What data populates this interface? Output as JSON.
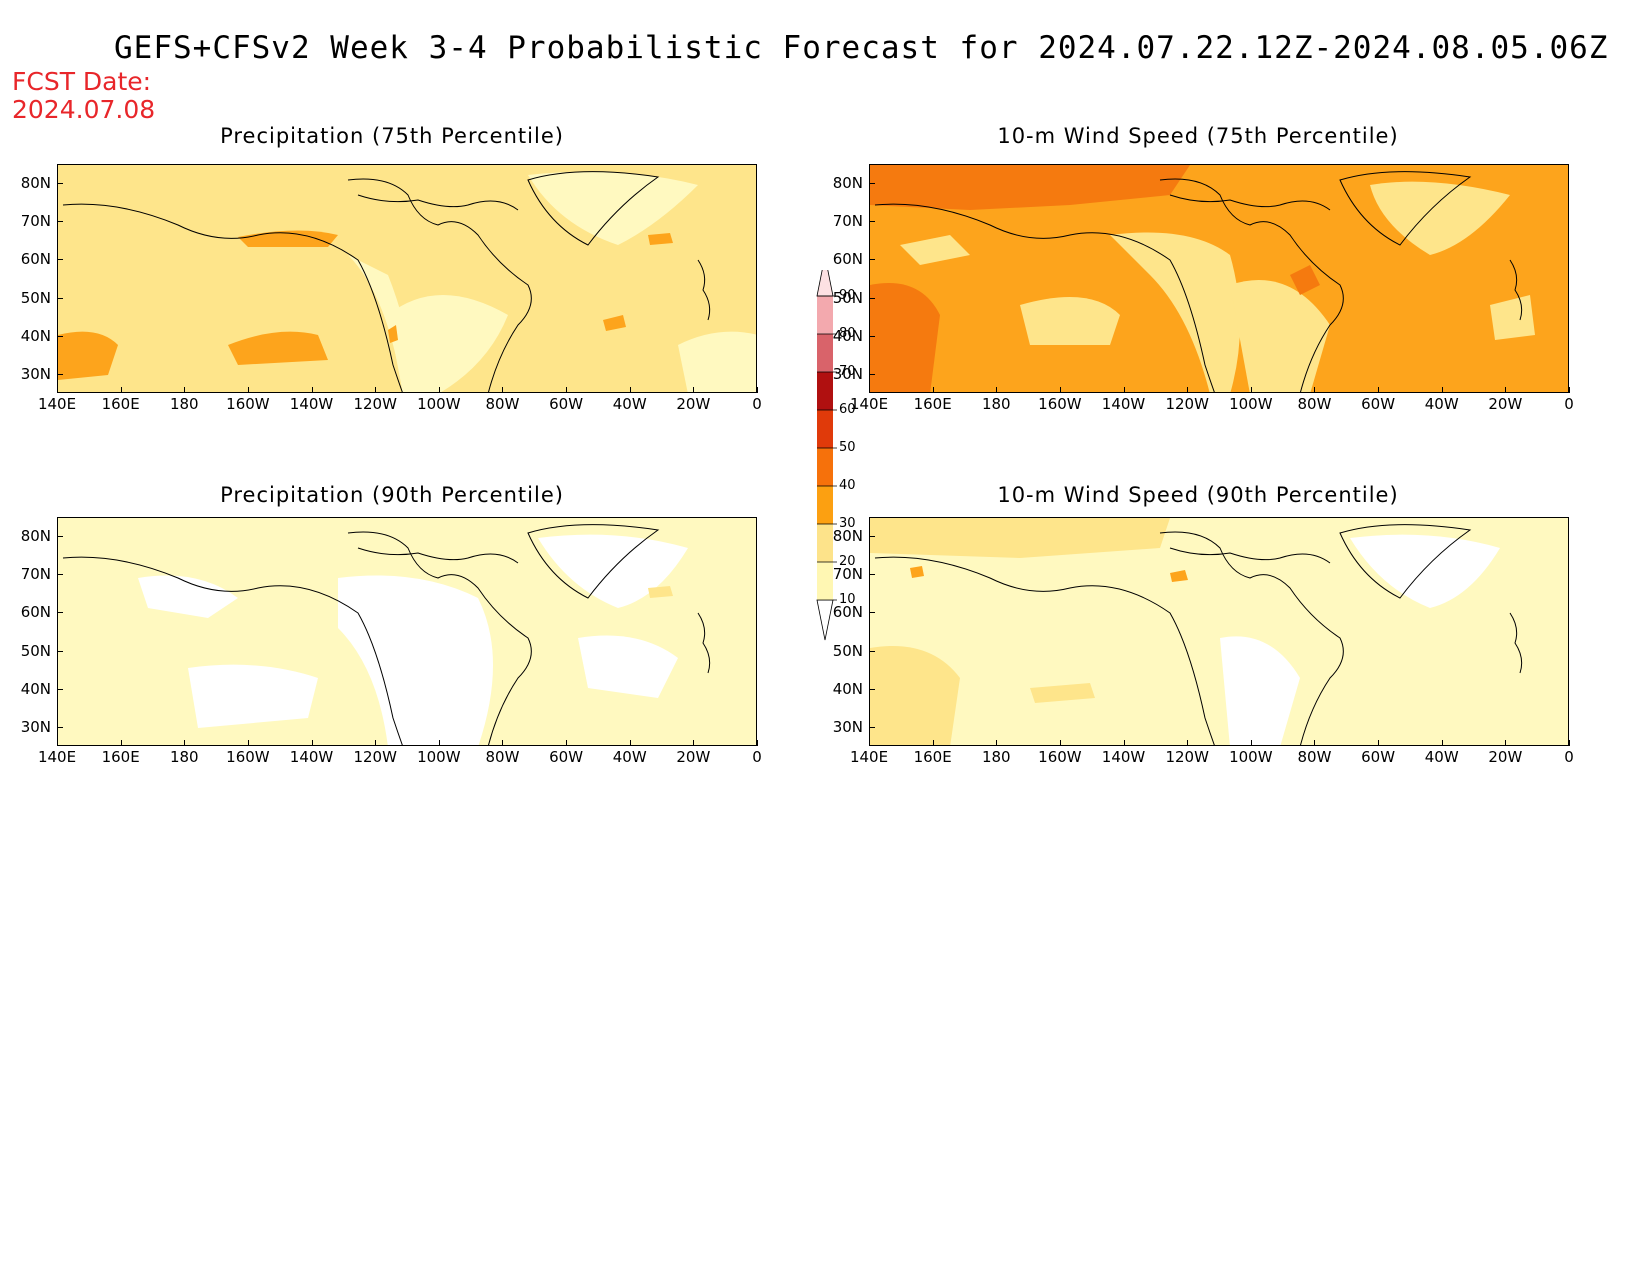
{
  "title": "GEFS+CFSv2 Week 3-4 Probabilistic Forecast for 2024.07.22.12Z-2024.08.05.06Z",
  "fcst_date_label": "FCST Date:",
  "fcst_date_value": "2024.07.08",
  "panels": [
    {
      "title": "Precipitation (75th Percentile)",
      "base_class": "20-30"
    },
    {
      "title": "10-m Wind Speed (75th Percentile)",
      "base_class": "30-40"
    },
    {
      "title": "Precipitation (90th Percentile)",
      "base_class": "10-20"
    },
    {
      "title": "10-m Wind Speed (90th Percentile)",
      "base_class": "10-20"
    }
  ],
  "lat_ticks": [
    "80N",
    "70N",
    "60N",
    "50N",
    "40N",
    "30N"
  ],
  "lon_ticks": [
    "140E",
    "160E",
    "180",
    "160W",
    "140W",
    "120W",
    "100W",
    "80W",
    "60W",
    "40W",
    "20W",
    "0"
  ],
  "colorbar": {
    "levels": [
      "10",
      "20",
      "30",
      "40",
      "50",
      "60",
      "70",
      "80",
      "90"
    ],
    "colors": [
      "#fff7b3",
      "#fde38a",
      "#fca011",
      "#f6710b",
      "#e03a0a",
      "#b01010",
      "#d9636a",
      "#f3a9ae",
      "#fde1e3"
    ]
  },
  "colors": {
    "c10_20": "#fff9c0",
    "c20_30": "#fee58b",
    "c30_40": "#fda41c",
    "c40_50": "#f57a0f",
    "fcst_red": "#e8262a"
  }
}
